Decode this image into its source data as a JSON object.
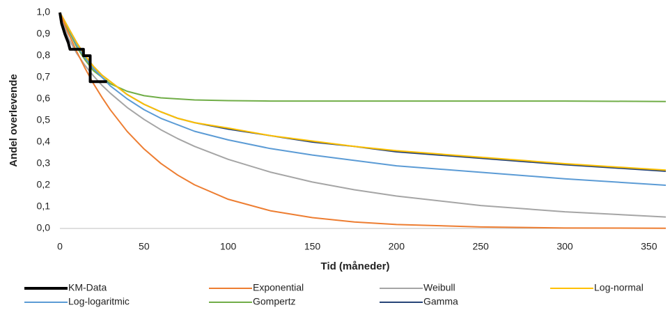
{
  "chart_data": {
    "type": "line",
    "xlabel": "Tid (måneder)",
    "ylabel": "Andel overlevende",
    "x": [
      0,
      5,
      10,
      15,
      20,
      25,
      30,
      40,
      50,
      60,
      70,
      80,
      100,
      125,
      150,
      175,
      200,
      250,
      300,
      360
    ],
    "xlim": [
      0,
      360
    ],
    "xticks": [
      0,
      50,
      100,
      150,
      200,
      250,
      300,
      350
    ],
    "ylim": [
      0,
      1
    ],
    "yticks": [
      {
        "value": 0,
        "label": "0,0"
      },
      {
        "value": 0.1,
        "label": "0,1"
      },
      {
        "value": 0.2,
        "label": "0,2"
      },
      {
        "value": 0.3,
        "label": "0,3"
      },
      {
        "value": 0.4,
        "label": "0,4"
      },
      {
        "value": 0.5,
        "label": "0,5"
      },
      {
        "value": 0.6,
        "label": "0,6"
      },
      {
        "value": 0.7,
        "label": "0,7"
      },
      {
        "value": 0.8,
        "label": "0,8"
      },
      {
        "value": 0.9,
        "label": "0,9"
      },
      {
        "value": 1,
        "label": "1,0"
      }
    ],
    "grid": false,
    "legend": "bottom",
    "series": [
      {
        "name": "KM-Data",
        "color": "#000000",
        "x": [
          0,
          1,
          3,
          5,
          6,
          14,
          14,
          18,
          18,
          28
        ],
        "values": [
          1,
          0.95,
          0.9,
          0.86,
          0.83,
          0.83,
          0.8,
          0.8,
          0.68,
          0.68
        ]
      },
      {
        "name": "Exponential",
        "color": "#ED7D31",
        "values": [
          1,
          0.905,
          0.819,
          0.741,
          0.67,
          0.607,
          0.549,
          0.449,
          0.368,
          0.301,
          0.247,
          0.202,
          0.135,
          0.082,
          0.05,
          0.03,
          0.018,
          0.007,
          0.002,
          0.001
        ]
      },
      {
        "name": "Weibull",
        "color": "#A5A5A5",
        "values": [
          1,
          0.882,
          0.811,
          0.754,
          0.706,
          0.663,
          0.626,
          0.56,
          0.505,
          0.457,
          0.416,
          0.38,
          0.32,
          0.261,
          0.215,
          0.179,
          0.15,
          0.106,
          0.077,
          0.053
        ]
      },
      {
        "name": "Log-normal",
        "color": "#FFC000",
        "values": [
          1,
          0.93,
          0.86,
          0.8,
          0.75,
          0.71,
          0.68,
          0.62,
          0.575,
          0.54,
          0.51,
          0.49,
          0.465,
          0.43,
          0.405,
          0.38,
          0.36,
          0.33,
          0.3,
          0.27
        ]
      },
      {
        "name": "Log-logaritmic",
        "color": "#5B9BD5",
        "values": [
          1,
          0.93,
          0.85,
          0.79,
          0.74,
          0.7,
          0.66,
          0.6,
          0.55,
          0.51,
          0.48,
          0.45,
          0.41,
          0.37,
          0.34,
          0.315,
          0.29,
          0.26,
          0.23,
          0.2
        ]
      },
      {
        "name": "Gompertz",
        "color": "#70AD47",
        "values": [
          1,
          0.92,
          0.84,
          0.78,
          0.73,
          0.7,
          0.67,
          0.635,
          0.615,
          0.605,
          0.6,
          0.595,
          0.592,
          0.59,
          0.59,
          0.59,
          0.59,
          0.59,
          0.59,
          0.588
        ]
      },
      {
        "name": "Gamma",
        "color": "#264478",
        "values": [
          1,
          0.93,
          0.86,
          0.8,
          0.75,
          0.71,
          0.68,
          0.62,
          0.575,
          0.54,
          0.51,
          0.49,
          0.46,
          0.43,
          0.4,
          0.38,
          0.355,
          0.325,
          0.295,
          0.265
        ]
      }
    ]
  }
}
